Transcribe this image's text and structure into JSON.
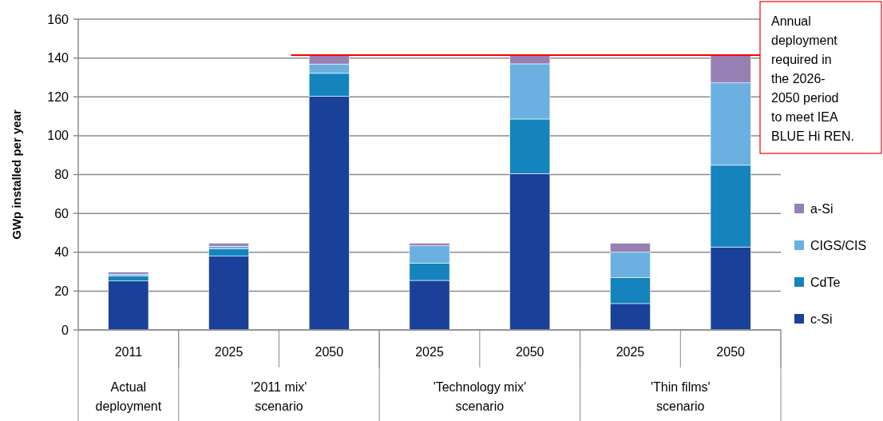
{
  "chart_data": {
    "type": "bar",
    "stacked": true,
    "ylabel": "GWp installed per year",
    "categories": [
      "2011",
      "2025",
      "2050",
      "2025",
      "2050",
      "2025",
      "2050"
    ],
    "annotations": [
      "Actual deployment",
      "'2011 mix' scenario",
      "'Technology mix' scenario",
      "'Thin films' scenario"
    ],
    "series": [
      {
        "name": "c-Si",
        "color": "#1a4199",
        "values": [
          25.2,
          38,
          120.4,
          25.5,
          80.5,
          13.6,
          42.7
        ]
      },
      {
        "name": "CdTe",
        "color": "#1483be",
        "values": [
          2.5,
          3.7,
          11.7,
          8.8,
          28.1,
          13.3,
          42.1
        ]
      },
      {
        "name": "CIGS/CIS",
        "color": "#6bb0e0",
        "values": [
          1,
          1.4,
          4.8,
          9,
          28.4,
          13.1,
          42.4
        ]
      },
      {
        "name": "a-Si",
        "color": "#9780b4",
        "values": [
          1.1,
          1.6,
          4.6,
          1.4,
          4.5,
          4.7,
          14.3
        ]
      }
    ],
    "ylim": [
      0,
      160
    ],
    "yticks": [
      0,
      20,
      40,
      60,
      80,
      100,
      120,
      140,
      160
    ],
    "grid": "y",
    "legend": "right",
    "ref_lines": [
      {
        "axis": "y",
        "value": 141.5,
        "label": "Annual deployment required in the 2026-2050 period to meet IEA BLUE Hi REN.",
        "color": "#ff0000"
      }
    ]
  }
}
